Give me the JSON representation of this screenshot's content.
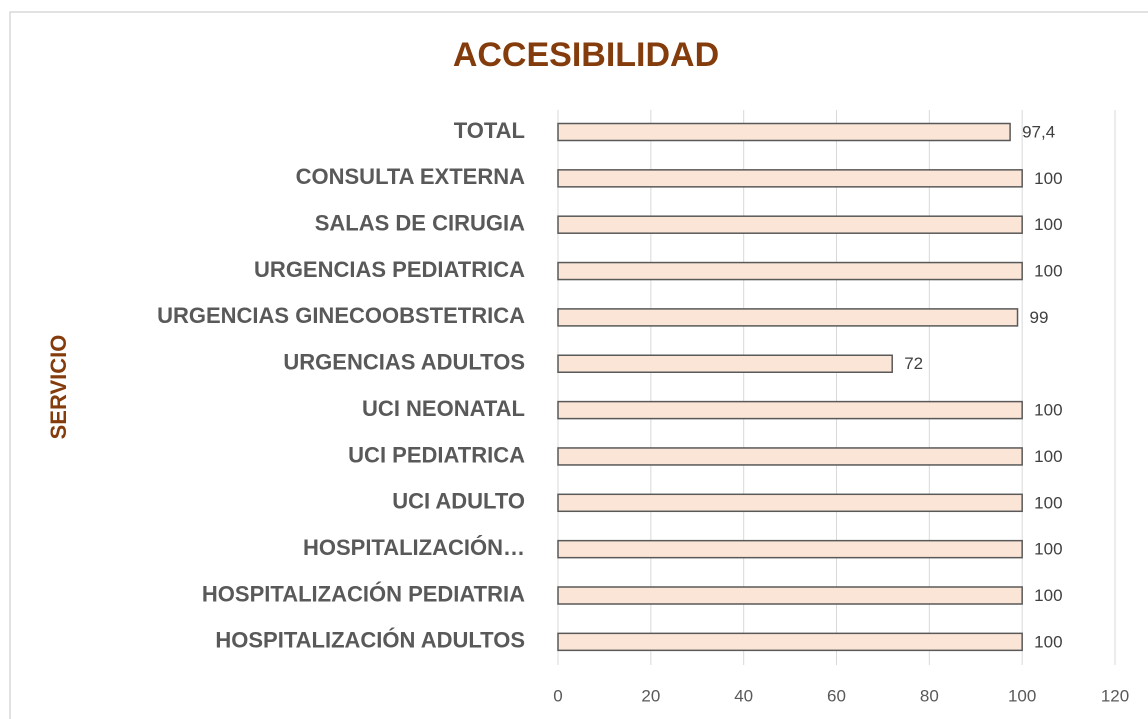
{
  "chart_data": {
    "type": "bar",
    "orientation": "horizontal",
    "title": "ACCESIBILIDAD",
    "y_label": "SERVICIO",
    "categories": [
      "TOTAL",
      "CONSULTA EXTERNA",
      "SALAS DE CIRUGIA",
      "URGENCIAS PEDIATRICA",
      "URGENCIAS GINECOOBSTETRICA",
      "URGENCIAS ADULTOS",
      "UCI NEONATAL",
      "UCI PEDIATRICA",
      "UCI ADULTO",
      "HOSPITALIZACIÓN…",
      "HOSPITALIZACIÓN PEDIATRIA",
      "HOSPITALIZACIÓN ADULTOS"
    ],
    "values": [
      97.4,
      100,
      100,
      100,
      99,
      72,
      100,
      100,
      100,
      100,
      100,
      100
    ],
    "value_labels": [
      "97,4",
      "100",
      "100",
      "100",
      "99",
      "72",
      "100",
      "100",
      "100",
      "100",
      "100",
      "100"
    ],
    "color": "#fbe5d6",
    "xlim": [
      0,
      120
    ],
    "xticks": [
      0,
      20,
      40,
      60,
      80,
      100,
      120
    ],
    "grid": true
  }
}
